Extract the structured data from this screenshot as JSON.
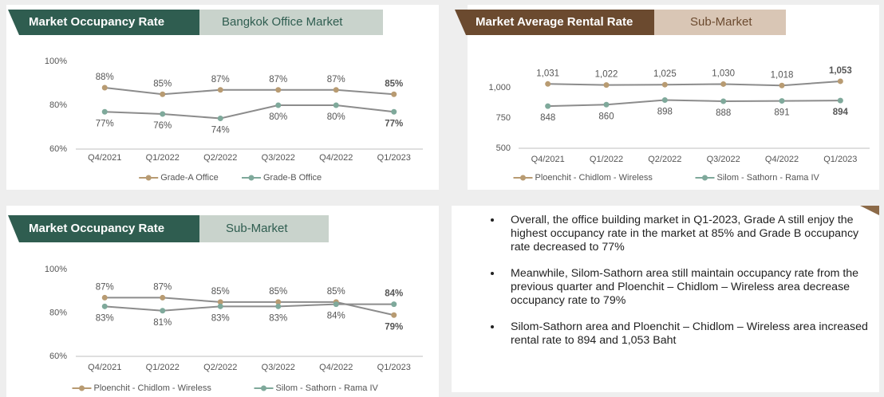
{
  "chart_data": [
    {
      "type": "line",
      "title": "Market Occupancy Rate",
      "subtitle": "Bangkok Office Market",
      "categories": [
        "Q4/2021",
        "Q1/2022",
        "Q2/2022",
        "Q3/2022",
        "Q4/2022",
        "Q1/2023"
      ],
      "series": [
        {
          "name": "Grade-A Office",
          "color": "#b89b72",
          "values": [
            88,
            85,
            87,
            87,
            87,
            85
          ],
          "value_labels": [
            "88%",
            "85%",
            "87%",
            "87%",
            "87%",
            "85%"
          ]
        },
        {
          "name": "Grade-B Office",
          "color": "#7fa99b",
          "values": [
            77,
            76,
            74,
            80,
            80,
            77
          ],
          "value_labels": [
            "77%",
            "76%",
            "74%",
            "80%",
            "80%",
            "77%"
          ]
        }
      ],
      "ylim": [
        60,
        100
      ],
      "yticks": [
        {
          "value": 60,
          "label": "60%"
        },
        {
          "value": 80,
          "label": "80%"
        },
        {
          "value": 100,
          "label": "100%"
        }
      ],
      "legend": "bottom"
    },
    {
      "type": "line",
      "title": "Market Average Rental Rate",
      "subtitle": "Sub-Market",
      "categories": [
        "Q4/2021",
        "Q1/2022",
        "Q2/2022",
        "Q3/2022",
        "Q4/2022",
        "Q1/2023"
      ],
      "series": [
        {
          "name": "Ploenchit - Chidlom - Wireless",
          "color": "#b89b72",
          "values": [
            1031,
            1022,
            1025,
            1030,
            1018,
            1053
          ],
          "value_labels": [
            "1,031",
            "1,022",
            "1,025",
            "1,030",
            "1,018",
            "1,053"
          ]
        },
        {
          "name": "Silom - Sathorn - Rama IV",
          "color": "#7fa99b",
          "values": [
            848,
            860,
            898,
            888,
            891,
            894
          ]
        }
      ],
      "ylim": [
        500,
        1100
      ],
      "yticks": [
        500,
        750,
        {
          "value": 1000,
          "label": "1,000"
        }
      ],
      "legend": "bottom"
    },
    {
      "type": "line",
      "title": "Market Occupancy Rate",
      "subtitle": "Sub-Market",
      "categories": [
        "Q4/2021",
        "Q1/2022",
        "Q2/2022",
        "Q3/2022",
        "Q4/2022",
        "Q1/2023"
      ],
      "series": [
        {
          "name": "Ploenchit - Chidlom - Wireless",
          "color": "#b89b72",
          "values": [
            87,
            87,
            85,
            85,
            85,
            79
          ],
          "value_labels": [
            "87%",
            "87%",
            "85%",
            "85%",
            "85%",
            "79%"
          ]
        },
        {
          "name": "Silom - Sathorn - Rama IV",
          "color": "#7fa99b",
          "values": [
            83,
            81,
            83,
            83,
            84,
            84
          ],
          "value_labels": [
            "83%",
            "81%",
            "83%",
            "83%",
            "84%",
            "84%"
          ]
        }
      ],
      "ylim": [
        60,
        100
      ],
      "yticks": [
        {
          "value": 60,
          "label": "60%"
        },
        {
          "value": 80,
          "label": "80%"
        },
        {
          "value": 100,
          "label": "100%"
        }
      ],
      "legend": "bottom"
    }
  ],
  "notes": [
    "Overall, the office building market in Q1-2023, Grade A still enjoy the highest occupancy rate in the market at 85% and Grade B occupancy rate decreased to 77%",
    "Meanwhile, Silom-Sathorn area still maintain occupancy rate from the previous quarter and Ploenchit – Chidlom – Wireless area decrease occupancy rate to 79%",
    "Silom-Sathorn area and Ploenchit – Chidlom – Wireless area increased rental rate to 894 and 1,053 Baht"
  ]
}
